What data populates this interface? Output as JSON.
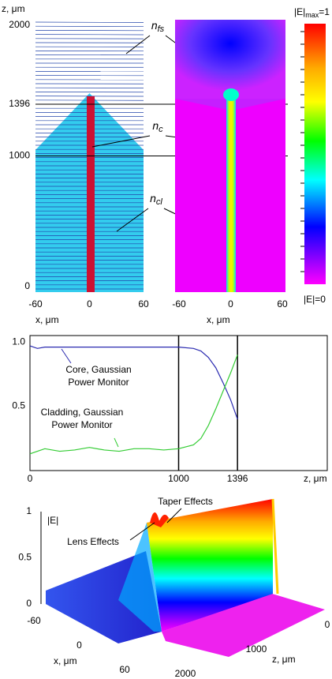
{
  "chart_data": [
    {
      "type": "index-profile",
      "ylabel": "z, μm",
      "xlabel": "x, μm",
      "xlim": [
        -60,
        60
      ],
      "xticks": [
        -60,
        0,
        60
      ],
      "ylim": [
        0,
        2000
      ],
      "yticks": [
        0,
        1000,
        1396,
        2000
      ],
      "annotations": [
        {
          "text": "n",
          "sub": "fs"
        },
        {
          "text": "n",
          "sub": "c"
        },
        {
          "text": "n",
          "sub": "cl"
        }
      ]
    },
    {
      "type": "field-map",
      "xlabel": "x, μm",
      "xlim": [
        -60,
        60
      ],
      "xticks": [
        -60,
        0,
        60
      ],
      "colorbar": {
        "top": {
          "text": "|E|",
          "sub": "max",
          "tail": "=1"
        },
        "bottom": "|E|=0"
      }
    },
    {
      "type": "line",
      "xlabel": "z, μm",
      "xlim": [
        0,
        2000
      ],
      "xticks": [
        0,
        1000,
        1396
      ],
      "ylim": [
        0,
        1.05
      ],
      "yticks": [
        {
          "value": 0.5,
          "label": "0.5"
        },
        {
          "value": 1,
          "label": "1.0"
        }
      ],
      "x": [
        0,
        50,
        100,
        200,
        300,
        400,
        500,
        600,
        700,
        800,
        900,
        1000,
        1100,
        1150,
        1200,
        1250,
        1300,
        1350,
        1396
      ],
      "series": [
        {
          "name_lines": [
            "Core, Gaussian",
            "Power Monitor"
          ],
          "color": "#2a2ab0",
          "values": [
            0.97,
            0.95,
            0.96,
            0.96,
            0.96,
            0.96,
            0.96,
            0.96,
            0.96,
            0.96,
            0.96,
            0.96,
            0.95,
            0.93,
            0.88,
            0.8,
            0.68,
            0.55,
            0.4
          ]
        },
        {
          "name_lines": [
            "Cladding, Gaussian",
            "Power Monitor"
          ],
          "color": "#33cc33",
          "values": [
            0.13,
            0.15,
            0.17,
            0.15,
            0.16,
            0.18,
            0.16,
            0.15,
            0.17,
            0.17,
            0.16,
            0.17,
            0.2,
            0.25,
            0.35,
            0.48,
            0.62,
            0.76,
            0.9
          ]
        }
      ]
    },
    {
      "type": "surface3d",
      "zlabel": "|E|",
      "zlim": [
        0,
        1
      ],
      "zticks": [
        0,
        0.5,
        1
      ],
      "xlabel": "x, μm",
      "xlim": [
        -60,
        60
      ],
      "xticks": [
        -60,
        0,
        60
      ],
      "ylabel": "z, μm",
      "ylim": [
        0,
        2000
      ],
      "yticks": [
        0,
        1000,
        2000
      ],
      "annotations": [
        "Taper Effects",
        "Lens Effects"
      ]
    }
  ]
}
